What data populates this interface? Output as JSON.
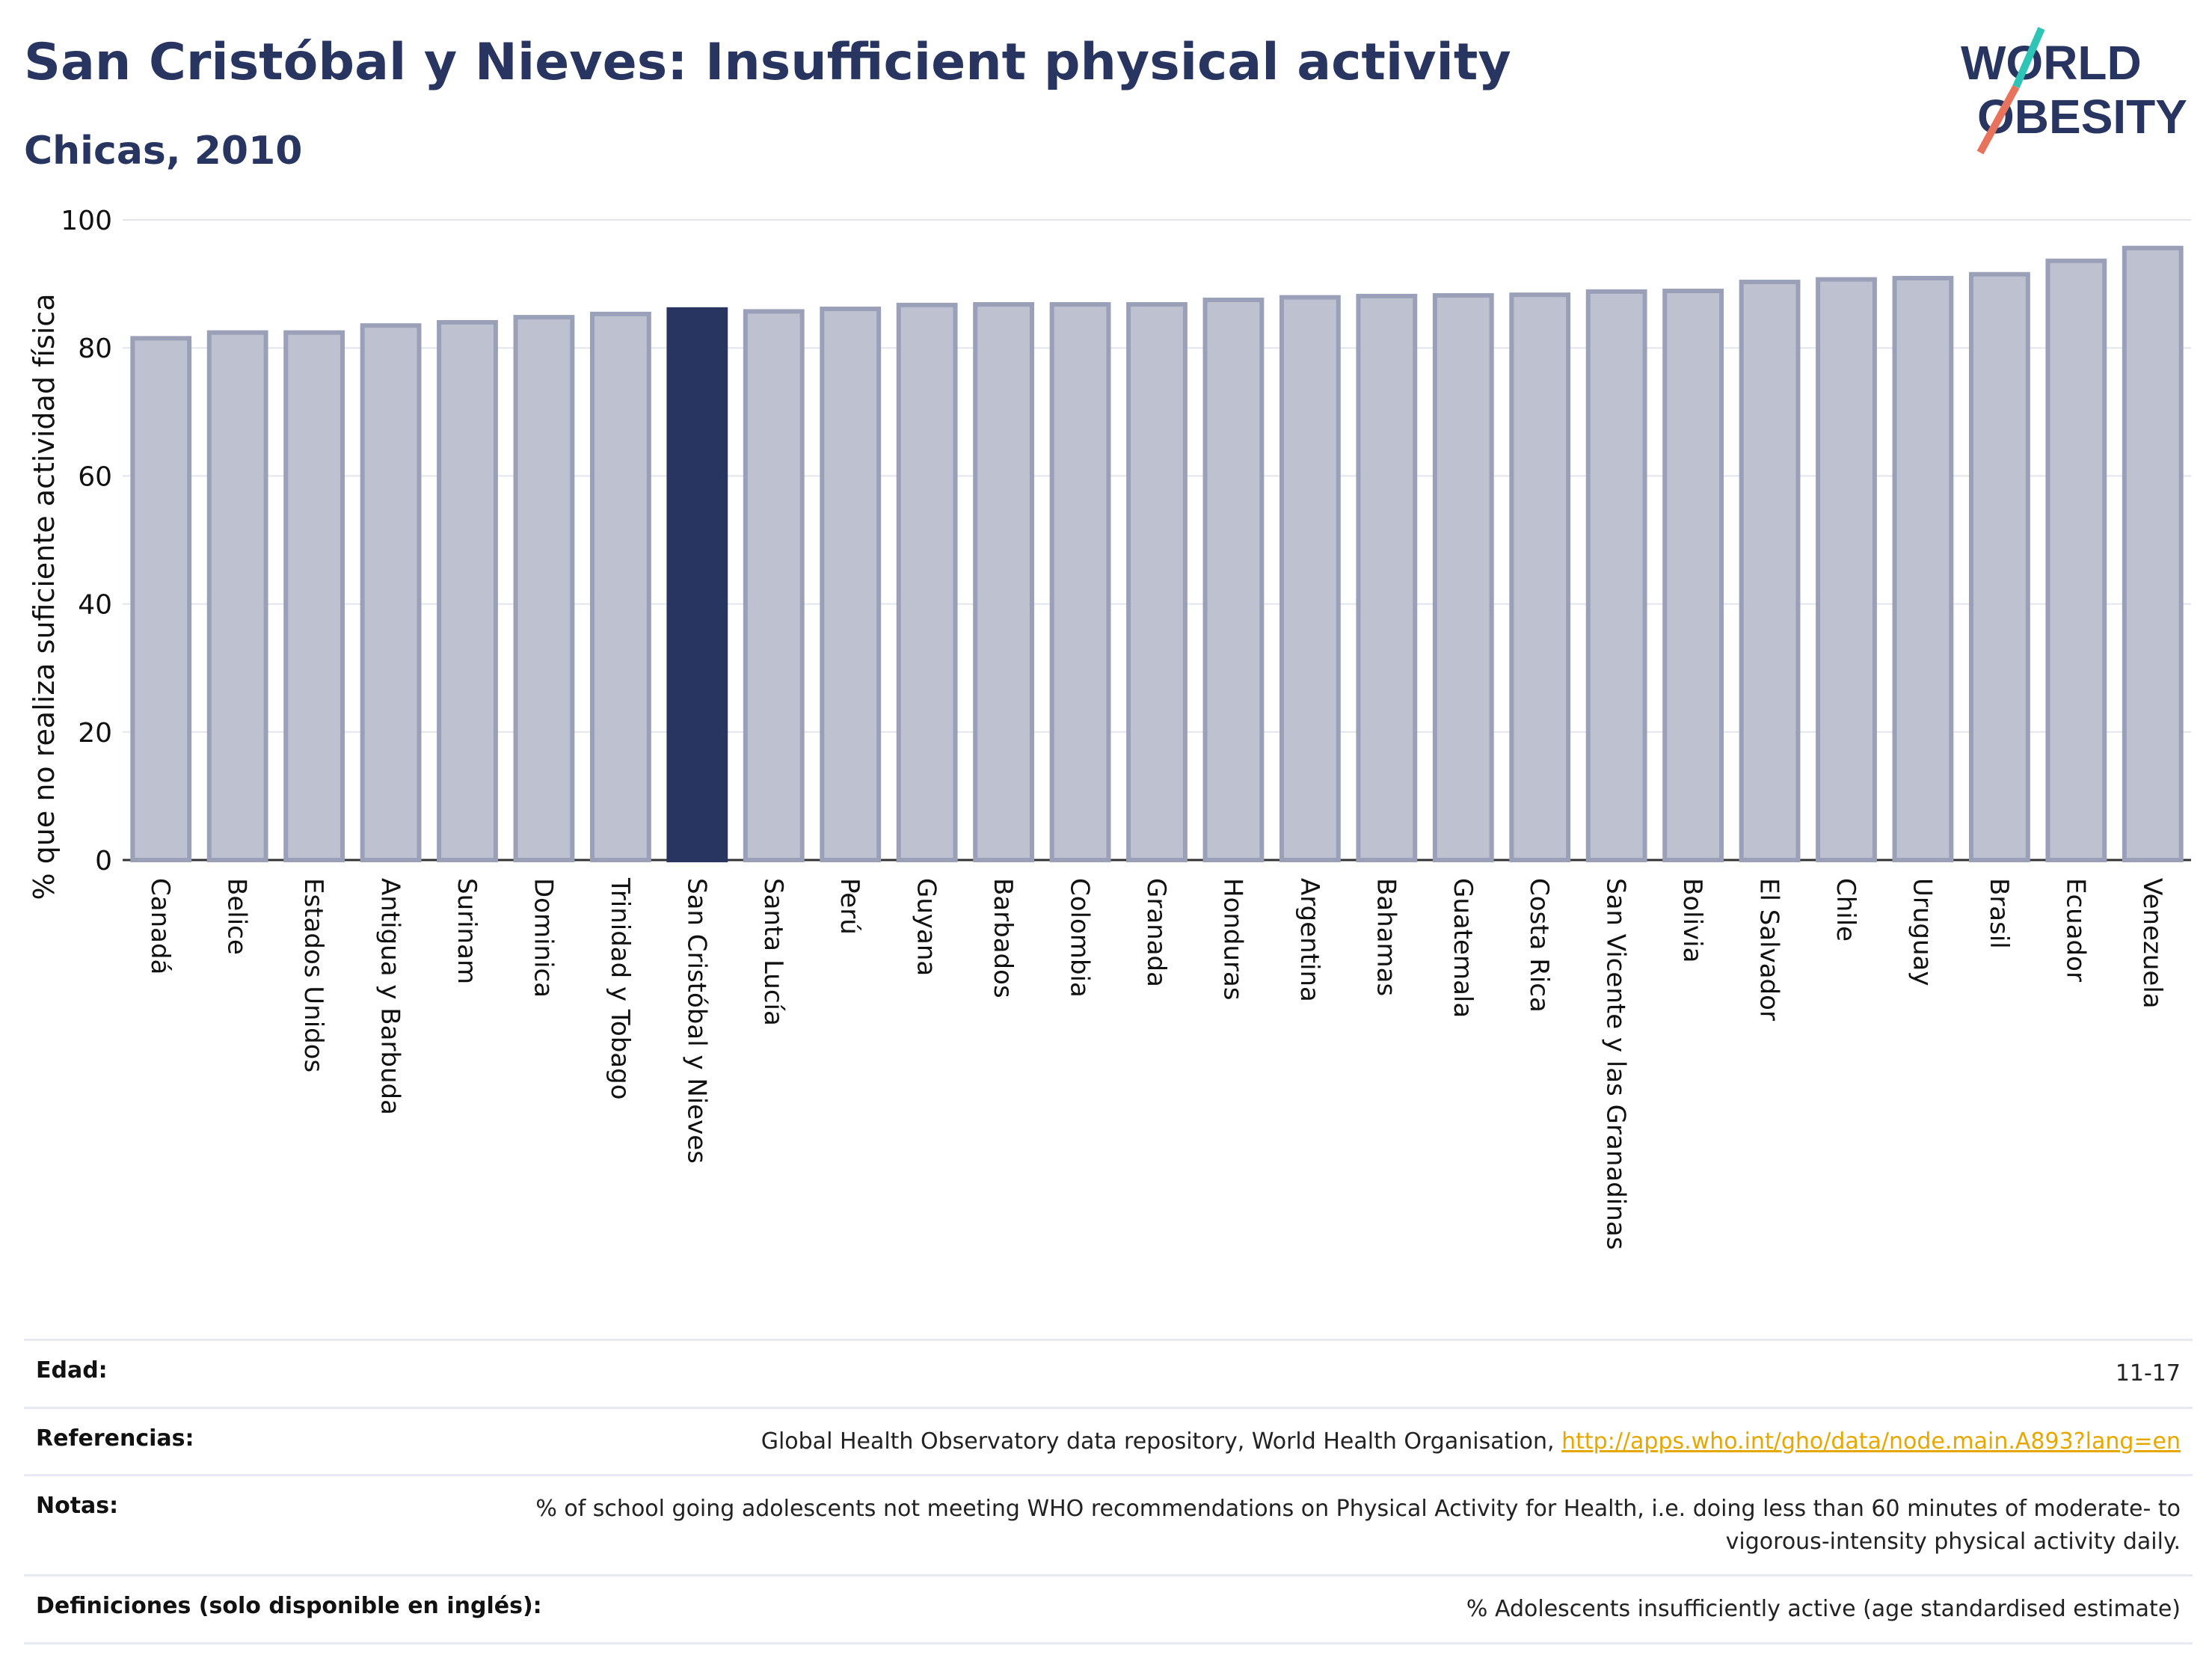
{
  "header": {
    "title": "San Cristóbal y Nieves: Insufficient physical activity",
    "subtitle": "Chicas, 2010"
  },
  "logo": {
    "line1": "WORLD",
    "line2": "OBESITY"
  },
  "colors": {
    "highlight": "#283561",
    "bar_fill": "#bec2d0",
    "bar_stroke": "#9aa0b8",
    "accent_teal": "#2ec4b6",
    "accent_coral": "#e8735c"
  },
  "chart_data": {
    "type": "bar",
    "title": "San Cristóbal y Nieves: Insufficient physical activity",
    "subtitle": "Chicas, 2010",
    "ylabel": "% que no realiza suficiente actividad física",
    "xlabel": "",
    "ylim": [
      0,
      100
    ],
    "yticks": [
      0,
      20,
      40,
      60,
      80,
      100
    ],
    "grid": true,
    "highlight": "San Cristóbal y Nieves",
    "categories": [
      "Canadá",
      "Belice",
      "Estados Unidos",
      "Antigua y Barbuda",
      "Surinam",
      "Dominica",
      "Trinidad y Tobago",
      "San Cristóbal y Nieves",
      "Santa Lucía",
      "Perú",
      "Guyana",
      "Barbados",
      "Colombia",
      "Granada",
      "Honduras",
      "Argentina",
      "Bahamas",
      "Guatemala",
      "Costa Rica",
      "San Vicente y las Granadinas",
      "Bolivia",
      "El Salvador",
      "Chile",
      "Uruguay",
      "Brasil",
      "Ecuador",
      "Venezuela"
    ],
    "values": [
      81.5,
      82.4,
      82.4,
      83.5,
      84.0,
      84.8,
      85.3,
      86.0,
      85.7,
      86.1,
      86.7,
      86.8,
      86.8,
      86.8,
      87.5,
      87.9,
      88.1,
      88.2,
      88.3,
      88.8,
      88.9,
      90.3,
      90.7,
      90.9,
      91.5,
      93.6,
      95.6
    ]
  },
  "meta": {
    "age_label": "Edad:",
    "age_value": "11-17",
    "refs_label": "Referencias:",
    "refs_text": "Global Health Observatory data repository, World Health Organisation,",
    "refs_link": "http://apps.who.int/gho/data/node.main.A893?lang=en",
    "notes_label": "Notas:",
    "notes_value": "% of school going adolescents not meeting WHO recommendations on Physical Activity for Health, i.e. doing less than 60 minutes of moderate- to vigorous-intensity physical activity daily.",
    "defs_label": "Definiciones (solo disponible en inglés):",
    "defs_value": "% Adolescents insufficiently active (age standardised estimate)"
  }
}
